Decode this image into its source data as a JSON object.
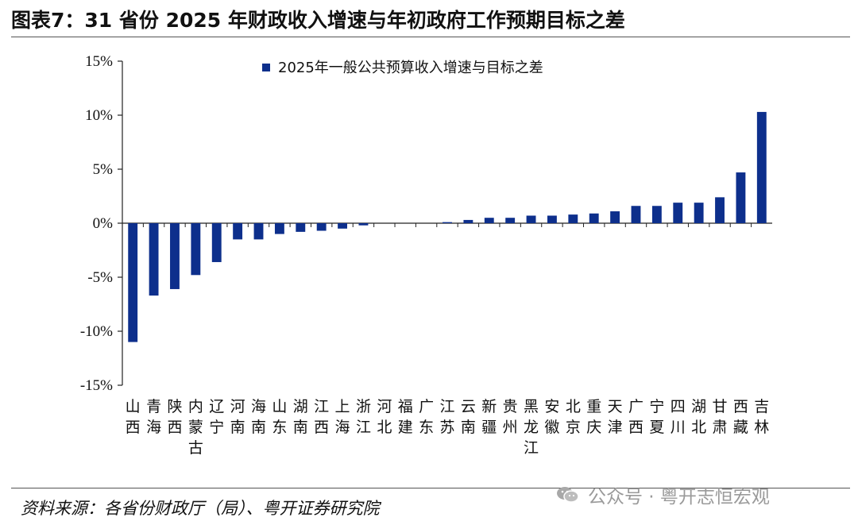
{
  "title": "图表7：31 省份 2025 年财政收入增速与年初政府工作预期目标之差",
  "source": "资料来源：各省份财政厅（局）、粤开证券研究院",
  "watermark": "公众号 · 粤开志恒宏观",
  "watermark_icon": "wechat-icon",
  "chart_data": {
    "type": "bar",
    "legend": "2025年一般公共预算收入增速与目标之差",
    "legend_position": "top-center",
    "series_color": "#0d2f8c",
    "y_unit": "%",
    "ylim": [
      -15,
      15
    ],
    "yticks": [
      -15,
      -10,
      -5,
      0,
      5,
      10,
      15
    ],
    "ytick_labels": [
      "-15%",
      "-10%",
      "-5%",
      "0%",
      "5%",
      "10%",
      "15%"
    ],
    "grid": false,
    "categories": [
      "山西",
      "青海",
      "陕西",
      "内蒙古",
      "辽宁",
      "河南",
      "海南",
      "山东",
      "湖南",
      "江西",
      "上海",
      "浙江",
      "河北",
      "福建",
      "广东",
      "江苏",
      "云南",
      "新疆",
      "贵州",
      "黑龙江",
      "安徽",
      "北京",
      "重庆",
      "天津",
      "广西",
      "宁夏",
      "四川",
      "湖北",
      "甘肃",
      "西藏",
      "吉林"
    ],
    "values": [
      -11.0,
      -6.7,
      -6.1,
      -4.8,
      -3.6,
      -1.5,
      -1.5,
      -1.0,
      -0.8,
      -0.7,
      -0.5,
      -0.2,
      0.0,
      0.0,
      0.0,
      0.1,
      0.3,
      0.5,
      0.5,
      0.7,
      0.7,
      0.8,
      0.9,
      1.1,
      1.6,
      1.6,
      1.9,
      1.9,
      2.4,
      4.7,
      10.3
    ]
  }
}
